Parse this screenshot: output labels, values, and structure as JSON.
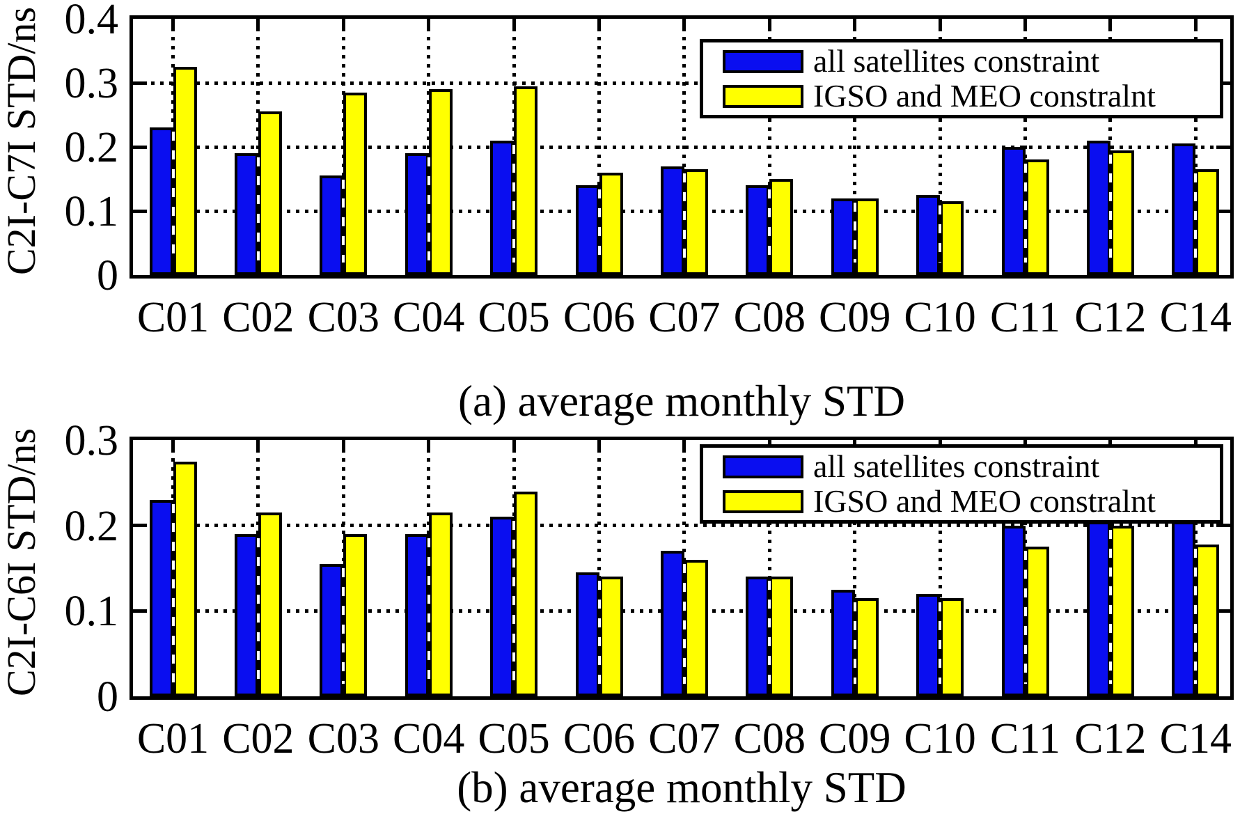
{
  "colors": {
    "bar_blue": "#0a0ef0",
    "bar_yellow": "#ffff00",
    "axis": "#000000",
    "background": "#ffffff"
  },
  "chart_data": [
    {
      "id": "a",
      "type": "bar",
      "caption": "(a) average monthly STD",
      "ylabel": "C2I-C7I STD/ns",
      "categories": [
        "C01",
        "C02",
        "C03",
        "C04",
        "C05",
        "C06",
        "C07",
        "C08",
        "C09",
        "C10",
        "C11",
        "C12",
        "C14"
      ],
      "series": [
        {
          "name": "all satellites constraint",
          "color": "#0a0ef0",
          "values": [
            0.23,
            0.19,
            0.155,
            0.19,
            0.21,
            0.14,
            0.17,
            0.14,
            0.12,
            0.125,
            0.2,
            0.21,
            0.205
          ]
        },
        {
          "name": "IGSO and MEO constralnt",
          "color": "#ffff00",
          "values": [
            0.325,
            0.255,
            0.285,
            0.29,
            0.295,
            0.16,
            0.165,
            0.15,
            0.12,
            0.115,
            0.18,
            0.195,
            0.165
          ]
        }
      ],
      "ylim": [
        0,
        0.4
      ],
      "yticks": [
        0,
        0.1,
        0.2,
        0.3,
        0.4
      ],
      "grid": "dotted",
      "legend_position": "top-right"
    },
    {
      "id": "b",
      "type": "bar",
      "caption": "(b) average monthly STD",
      "ylabel": "C2I-C6I STD/ns",
      "categories": [
        "C01",
        "C02",
        "C03",
        "C04",
        "C05",
        "C06",
        "C07",
        "C08",
        "C09",
        "C10",
        "C11",
        "C12",
        "C14"
      ],
      "series": [
        {
          "name": "all satellites constraint",
          "color": "#0a0ef0",
          "values": [
            0.23,
            0.19,
            0.155,
            0.19,
            0.21,
            0.145,
            0.17,
            0.14,
            0.125,
            0.12,
            0.2,
            0.205,
            0.205
          ]
        },
        {
          "name": "IGSO and MEO constralnt",
          "color": "#ffff00",
          "values": [
            0.275,
            0.215,
            0.19,
            0.215,
            0.24,
            0.14,
            0.16,
            0.14,
            0.115,
            0.115,
            0.175,
            0.2,
            0.178
          ]
        }
      ],
      "ylim": [
        0,
        0.3
      ],
      "yticks": [
        0,
        0.1,
        0.2,
        0.3
      ],
      "grid": "dotted",
      "legend_position": "top-right"
    }
  ]
}
